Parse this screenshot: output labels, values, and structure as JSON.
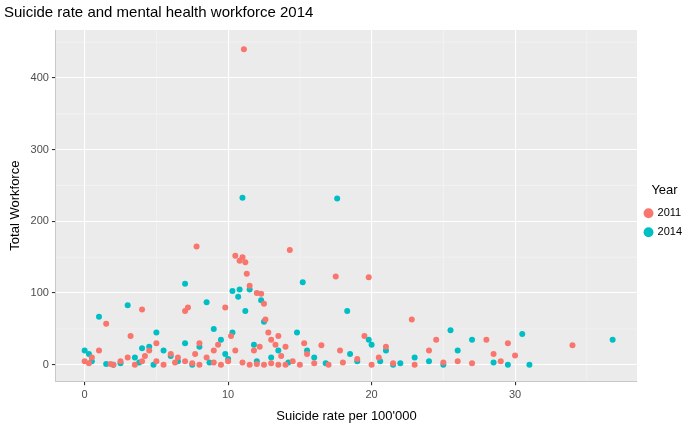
{
  "chart_data": {
    "type": "scatter",
    "title": "Suicide rate and mental health workforce 2014",
    "x_label": "Suicide rate per 100'000",
    "y_label": "Total Workforce",
    "legend_title": "Year",
    "legend": "right",
    "grid": true,
    "xlim": [
      -2,
      38.5
    ],
    "xticks": [
      0,
      10,
      20,
      30
    ],
    "ylim": [
      -23,
      467
    ],
    "yticks": [
      0,
      100,
      200,
      300,
      400
    ],
    "series": [
      {
        "name": "2011",
        "color": "#F8766D",
        "marker": "circle",
        "x": [
          11.1,
          11,
          10.5,
          10.8,
          11.2,
          11.3,
          12,
          12.3,
          14.3,
          7.8,
          9.8,
          7.2,
          7,
          1.5,
          4,
          3.2,
          12.5,
          12.6,
          11.5,
          12.8,
          13,
          13.5,
          17.5,
          19.8,
          19.5,
          22.8,
          24.5,
          29.5,
          34,
          28.5,
          28,
          26,
          21,
          16.5,
          15.5,
          14,
          13.3,
          12.2,
          9,
          8,
          6,
          5,
          4.5,
          3,
          2.5,
          0.5,
          0,
          1,
          2,
          3.5,
          4,
          5,
          5.5,
          6.5,
          7,
          7.5,
          8,
          8.5,
          9,
          9.5,
          10,
          10.5,
          11,
          11.5,
          12,
          12.5,
          13,
          13.5,
          14,
          14.5,
          15,
          16,
          17,
          18,
          19,
          20,
          21.5,
          23,
          25,
          27,
          29,
          0.3,
          1.8,
          4.2,
          6.3,
          7.7,
          9.3,
          10.2,
          11.8,
          13.7,
          15.3,
          17.8,
          20.5,
          24,
          30
        ],
        "values": [
          440,
          150,
          152,
          145,
          143,
          127,
          100,
          99,
          160,
          165,
          80,
          80,
          75,
          57,
          77,
          40,
          85,
          63,
          110,
          45,
          35,
          40,
          123,
          122,
          40,
          63,
          35,
          30,
          27,
          15,
          35,
          5,
          25,
          27,
          15,
          25,
          28,
          25,
          20,
          30,
          15,
          30,
          20,
          10,
          5,
          10,
          5,
          20,
          0,
          0,
          5,
          5,
          0,
          10,
          5,
          2,
          0,
          10,
          3,
          0,
          5,
          20,
          3,
          0,
          1,
          0,
          2,
          0,
          0,
          5,
          0,
          2,
          0,
          3,
          8,
          0,
          2,
          0,
          3,
          2,
          5,
          2,
          1,
          12,
          3,
          15,
          28,
          40,
          20,
          12,
          30,
          20,
          10,
          20,
          13
        ]
      },
      {
        "name": "2014",
        "color": "#00BFC4",
        "marker": "circle",
        "x": [
          11,
          17.6,
          10.8,
          11.5,
          10.3,
          12.3,
          10.7,
          7,
          8.5,
          11.2,
          15.2,
          18.3,
          3,
          1,
          0,
          0.3,
          0.5,
          2,
          3.5,
          4.5,
          4,
          5,
          6,
          7,
          8,
          9,
          9.5,
          10.3,
          11.8,
          12.5,
          13.5,
          14.8,
          15.5,
          16,
          18.5,
          19,
          20,
          21,
          20.6,
          21.5,
          22,
          25.5,
          25,
          27,
          28.5,
          29.5,
          30.5,
          31,
          36.8,
          26,
          23,
          13,
          12,
          10,
          8.7,
          7.5,
          6.5,
          5.5,
          4.8,
          3.8,
          2.5,
          1.5,
          9.8,
          14.2,
          16.8,
          19.8,
          24
        ],
        "values": [
          233,
          232,
          105,
          105,
          103,
          90,
          95,
          113,
          87,
          75,
          115,
          75,
          83,
          67,
          20,
          15,
          5,
          0,
          10,
          25,
          23,
          45,
          12,
          30,
          25,
          50,
          35,
          45,
          28,
          60,
          20,
          45,
          20,
          10,
          15,
          5,
          28,
          20,
          5,
          0,
          2,
          48,
          0,
          35,
          3,
          0,
          43,
          0,
          35,
          20,
          10,
          10,
          5,
          8,
          3,
          0,
          5,
          20,
          0,
          3,
          2,
          1,
          15,
          3,
          2,
          35,
          5
        ]
      }
    ]
  }
}
